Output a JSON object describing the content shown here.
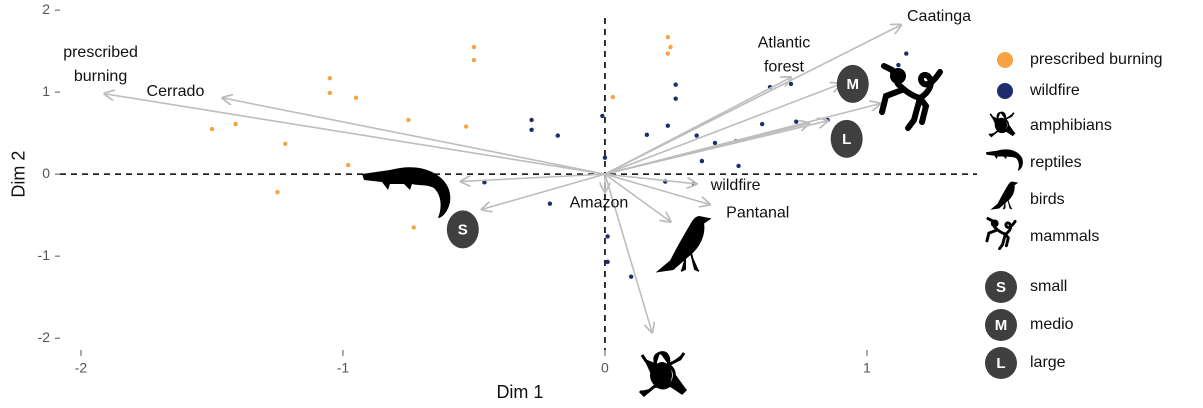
{
  "chart_data": {
    "type": "scatter",
    "xlabel": "Dim 1",
    "ylabel": "Dim 2",
    "xlim": [
      -2.08,
      1.42
    ],
    "ylim": [
      -2.12,
      2.05
    ],
    "xticks": [
      -2,
      -1,
      0,
      1
    ],
    "yticks": [
      -2,
      -1,
      0,
      1,
      2
    ],
    "series": [
      {
        "name": "prescribed burning",
        "color": "#f5a343",
        "x": [
          -0.5,
          -0.5,
          -1.05,
          -1.05,
          -0.95,
          -1.41,
          -1.5,
          -0.75,
          -0.53,
          -1.22,
          -0.98,
          -1.25,
          -0.73,
          0.24,
          0.25,
          0.24,
          0.03
        ],
        "y": [
          1.55,
          1.39,
          1.17,
          0.99,
          0.93,
          0.61,
          0.55,
          0.66,
          0.58,
          0.37,
          0.11,
          -0.22,
          -0.65,
          1.67,
          1.55,
          1.47,
          0.94
        ]
      },
      {
        "name": "wildfire",
        "color": "#1f2d6e",
        "x": [
          0.27,
          0.27,
          -0.28,
          -0.28,
          -0.18,
          -0.01,
          0.16,
          0.0,
          0.24,
          0.35,
          0.42,
          0.5,
          0.6,
          0.63,
          0.73,
          0.85,
          0.51,
          0.37,
          0.34,
          0.23,
          -0.46,
          -0.21,
          0.01,
          0.01,
          0.1,
          1.15,
          1.12,
          0.71
        ],
        "y": [
          1.09,
          0.92,
          0.66,
          0.54,
          0.47,
          0.71,
          0.48,
          0.2,
          0.59,
          0.47,
          0.38,
          0.4,
          0.61,
          1.06,
          0.64,
          0.66,
          0.1,
          0.16,
          -0.12,
          -0.09,
          -0.1,
          -0.36,
          -0.76,
          -1.07,
          -1.25,
          1.47,
          1.33,
          1.1
        ]
      }
    ],
    "arrows": [
      {
        "label": [
          "prescribed",
          "burning"
        ],
        "x": -1.91,
        "y": 0.98
      },
      {
        "label": [
          "Cerrado"
        ],
        "x": -1.46,
        "y": 0.93
      },
      {
        "label": [
          "Caatinga"
        ],
        "x": 1.13,
        "y": 1.82
      },
      {
        "label": [
          "Atlantic",
          "forest"
        ],
        "x": 0.71,
        "y": 1.18
      },
      {
        "badge": "M",
        "x": 0.9,
        "y": 1.1
      },
      {
        "badge": "L",
        "x": 0.85,
        "y": 0.65
      },
      {
        "x": 1.05,
        "y": 0.86
      },
      {
        "label": [
          "wildfire"
        ],
        "x": 0.35,
        "y": -0.12
      },
      {
        "label": [
          "Pantanal"
        ],
        "x": 0.4,
        "y": -0.37
      },
      {
        "x": 0.25,
        "y": -0.58
      },
      {
        "x": 0.18,
        "y": -1.93
      },
      {
        "x": -0.55,
        "y": -0.09
      },
      {
        "badge": "S",
        "x": -0.47,
        "y": -0.43
      },
      {
        "label": [
          "Amazon"
        ],
        "x": 0.0,
        "y": -0.22
      },
      {
        "x": 0.78,
        "y": 0.62
      }
    ],
    "legend_icons": [
      "amphibians",
      "reptiles",
      "birds",
      "mammals"
    ],
    "size_legend": [
      {
        "badge": "S",
        "label": "small"
      },
      {
        "badge": "M",
        "label": "medio"
      },
      {
        "badge": "L",
        "label": "large"
      }
    ]
  }
}
